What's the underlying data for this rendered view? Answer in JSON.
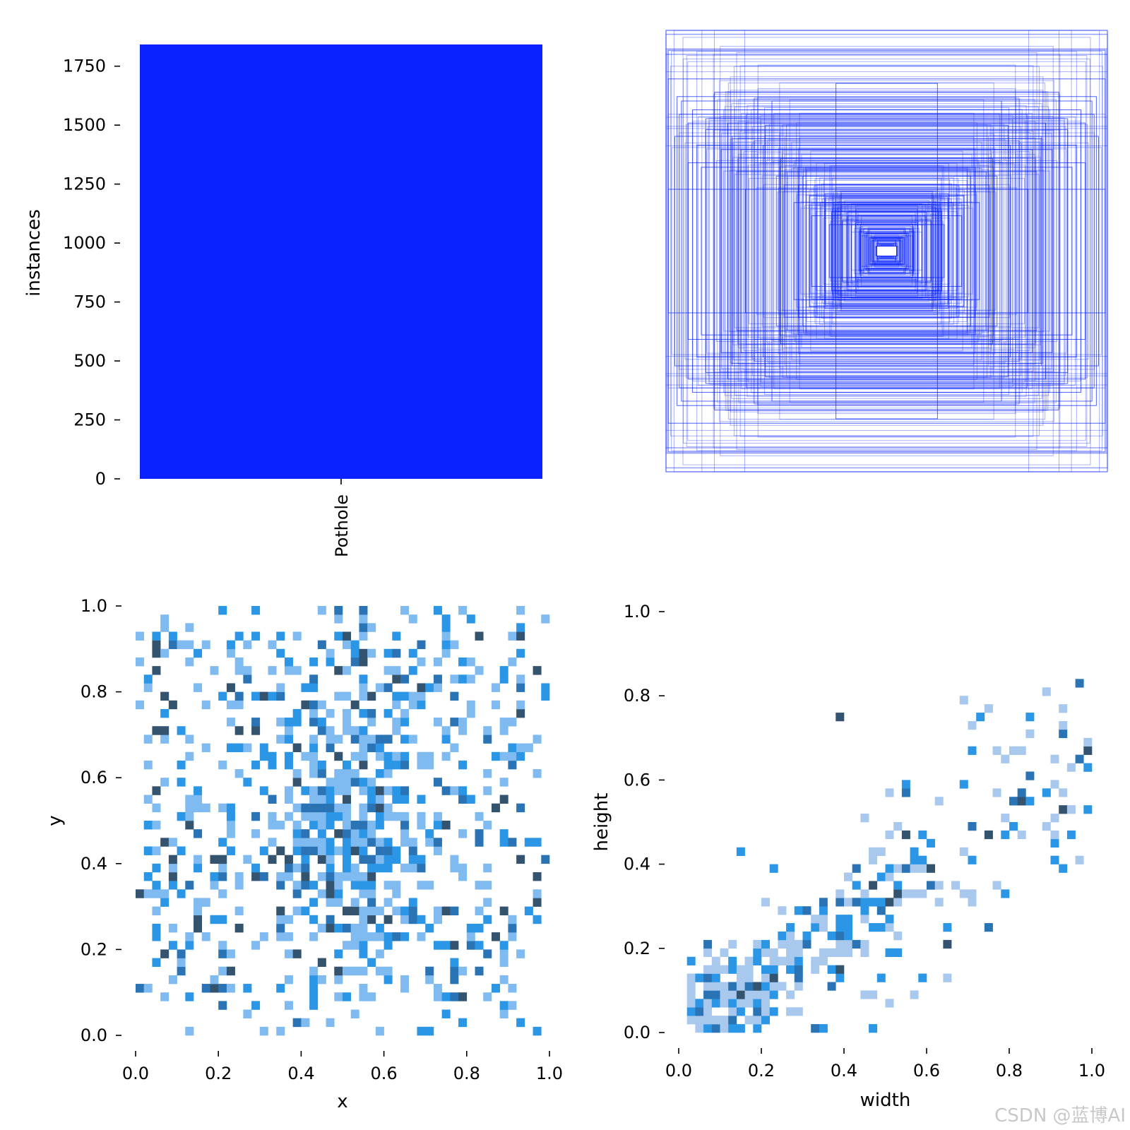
{
  "chart_data": [
    {
      "type": "bar",
      "categories": [
        "Pothole"
      ],
      "values": [
        1842
      ],
      "ylabel": "instances",
      "xlabel": "",
      "ylim": [
        0,
        1842
      ],
      "yticks": [
        "0",
        "250",
        "500",
        "750",
        "1000",
        "1250",
        "1500",
        "1750"
      ],
      "color": "#0a22ff"
    },
    {
      "type": "boxes",
      "title": "",
      "color": "#0a22ff",
      "note": "overlay of bounding-box outlines centered at (0.5, 0.5)",
      "boxes": [
        [
          1.0,
          1.0
        ],
        [
          0.99,
          0.91
        ],
        [
          0.99,
          0.78
        ],
        [
          0.95,
          0.7
        ],
        [
          0.93,
          0.68
        ],
        [
          0.23,
          0.76
        ],
        [
          0.52,
          0.68
        ],
        [
          0.7,
          0.52
        ],
        [
          0.55,
          0.57
        ],
        [
          0.75,
          0.46
        ],
        [
          0.82,
          0.55
        ],
        [
          0.9,
          0.4
        ],
        [
          0.99,
          0.28
        ],
        [
          0.82,
          0.6
        ],
        [
          0.6,
          0.4
        ],
        [
          0.45,
          0.36
        ],
        [
          0.4,
          0.3
        ],
        [
          0.35,
          0.25
        ],
        [
          0.3,
          0.22
        ],
        [
          0.25,
          0.18
        ],
        [
          0.2,
          0.14
        ],
        [
          0.16,
          0.12
        ],
        [
          0.12,
          0.1
        ],
        [
          0.1,
          0.08
        ],
        [
          0.08,
          0.06
        ],
        [
          0.06,
          0.05
        ],
        [
          0.05,
          0.02
        ],
        [
          0.66,
          0.46
        ],
        [
          0.6,
          0.5
        ],
        [
          0.5,
          0.34
        ],
        [
          0.88,
          0.64
        ],
        [
          0.72,
          0.58
        ],
        [
          0.84,
          0.38
        ],
        [
          0.64,
          0.28
        ],
        [
          0.42,
          0.22
        ],
        [
          0.56,
          0.48
        ],
        [
          0.96,
          0.52
        ],
        [
          0.78,
          0.72
        ],
        [
          0.26,
          0.12
        ],
        [
          0.34,
          0.16
        ],
        [
          0.9,
          0.58
        ],
        [
          0.68,
          0.36
        ],
        [
          0.48,
          0.42
        ],
        [
          0.38,
          0.34
        ],
        [
          0.28,
          0.26
        ],
        [
          0.22,
          0.2
        ],
        [
          0.18,
          0.16
        ],
        [
          0.14,
          0.13
        ],
        [
          0.94,
          0.62
        ],
        [
          0.86,
          0.48
        ]
      ]
    },
    {
      "type": "heatmap",
      "xlabel": "x",
      "ylabel": "y",
      "xlim": [
        0,
        1
      ],
      "ylim": [
        0,
        1
      ],
      "xticks": [
        "0.0",
        "0.2",
        "0.4",
        "0.6",
        "0.8",
        "1.0"
      ],
      "yticks": [
        "0.0",
        "0.2",
        "0.4",
        "0.6",
        "0.8",
        "1.0"
      ],
      "bins": 50,
      "distribution": "roughly uniform in x and y, denser near x≈0.5, y≈0.5",
      "colors": [
        "#7fbaf0",
        "#2b96e6",
        "#2a74b5",
        "#34536f"
      ]
    },
    {
      "type": "heatmap",
      "xlabel": "width",
      "ylabel": "height",
      "xlim": [
        0,
        1
      ],
      "ylim": [
        0,
        1
      ],
      "xticks": [
        "0.0",
        "0.2",
        "0.4",
        "0.6",
        "0.8",
        "1.0"
      ],
      "yticks": [
        "0.0",
        "0.2",
        "0.4",
        "0.6",
        "0.8",
        "1.0"
      ],
      "bins": 50,
      "distribution": "concentrated near width≈0.08, height≈0.06, spreading along the diagonal",
      "colors": [
        "#a8c8ee",
        "#2b96e6",
        "#2a74b5",
        "#34536f"
      ]
    }
  ],
  "watermark": "CSDN @蓝博AI"
}
